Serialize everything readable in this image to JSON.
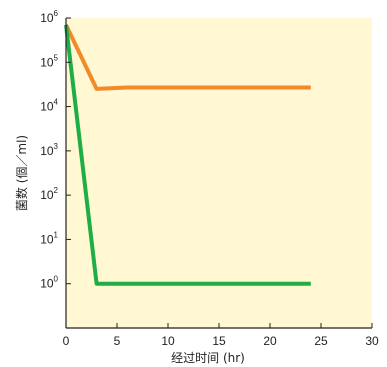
{
  "chart_data": {
    "type": "line",
    "title": "",
    "xlabel": "经过时间 (hr)",
    "ylabel": "菌数 (個／ml)",
    "xlim": [
      0,
      30
    ],
    "ylim": [
      0.1,
      1000000.0
    ],
    "log_y": true,
    "x_ticks": [
      0,
      5,
      10,
      15,
      20,
      25,
      30
    ],
    "y_ticks": [
      {
        "value": 1,
        "base": "10",
        "exp": "0"
      },
      {
        "value": 10,
        "base": "10",
        "exp": "1"
      },
      {
        "value": 100,
        "base": "10",
        "exp": "2"
      },
      {
        "value": 1000,
        "base": "10",
        "exp": "3"
      },
      {
        "value": 10000,
        "base": "10",
        "exp": "4"
      },
      {
        "value": 100000,
        "base": "10",
        "exp": "5"
      },
      {
        "value": 1000000,
        "base": "10",
        "exp": "6"
      }
    ],
    "series": [
      {
        "color": "#f28a2a",
        "x": [
          0,
          3,
          6,
          24
        ],
        "y": [
          700000,
          25000,
          27000,
          27000
        ]
      },
      {
        "color": "#1fae45",
        "x": [
          0,
          3,
          24
        ],
        "y": [
          700000,
          1,
          1
        ]
      }
    ],
    "plot_background": "#fff8d2",
    "axis_color": "#222222",
    "grid": false
  }
}
